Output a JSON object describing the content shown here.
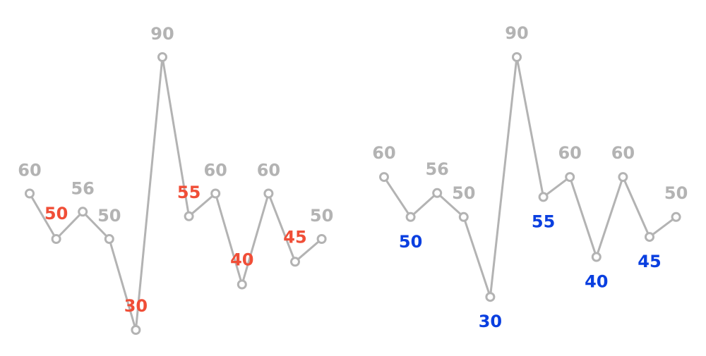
{
  "colors": {
    "line": "#b3b3b3",
    "marker_fill": "#ffffff",
    "label_default": "#b3b3b3",
    "highlight_left": "#f04e37",
    "highlight_right": "#0a3fe0"
  },
  "chart_data": [
    {
      "type": "line",
      "x": [
        1,
        2,
        3,
        4,
        5,
        6,
        7,
        8,
        9,
        10,
        11,
        12
      ],
      "values": [
        60,
        50,
        56,
        50,
        30,
        90,
        55,
        60,
        40,
        60,
        45,
        50
      ],
      "data_labels": [
        "60",
        "50",
        "56",
        "50",
        "30",
        "90",
        "55",
        "60",
        "40",
        "60",
        "45",
        "50"
      ],
      "highlighted_labels": [
        "50",
        "30",
        "55",
        "40",
        "45"
      ],
      "label_placement": "above-or-left",
      "grid": false,
      "axes_visible": false,
      "legend": "none"
    },
    {
      "type": "line",
      "x": [
        1,
        2,
        3,
        4,
        5,
        6,
        7,
        8,
        9,
        10,
        11,
        12
      ],
      "values": [
        60,
        50,
        56,
        50,
        30,
        90,
        55,
        60,
        40,
        60,
        45,
        50
      ],
      "data_labels": [
        "60",
        "50",
        "56",
        "50",
        "30",
        "90",
        "55",
        "60",
        "40",
        "60",
        "45",
        "50"
      ],
      "highlighted_labels": [
        "50",
        "30",
        "55",
        "40",
        "45"
      ],
      "label_placement": "above-peaks-below-valleys",
      "grid": false,
      "axes_visible": false,
      "legend": "none"
    }
  ]
}
